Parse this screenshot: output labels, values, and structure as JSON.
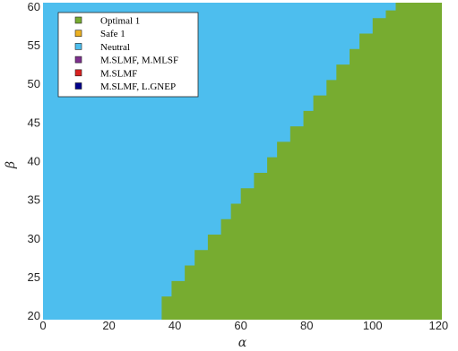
{
  "chart_data": {
    "type": "heatmap",
    "title": "",
    "xlabel": "α",
    "ylabel": "β",
    "xlim": [
      0,
      121
    ],
    "ylim": [
      19.5,
      60.5
    ],
    "xticks": [
      0,
      20,
      40,
      60,
      80,
      100,
      120
    ],
    "yticks": [
      20,
      25,
      30,
      35,
      40,
      45,
      50,
      55,
      60
    ],
    "grid": false,
    "legend_position": "top-left",
    "categories": [
      {
        "name": "Optimal 1",
        "color": "#77AC30"
      },
      {
        "name": "Safe 1",
        "color": "#EDB120"
      },
      {
        "name": "Neutral",
        "color": "#4DBEEE"
      },
      {
        "name": "M.SLMF, M.MLSF",
        "color": "#7E2F8E"
      },
      {
        "name": "M.SLMF",
        "color": "#D92120"
      },
      {
        "name": "M.SLMF, L.GNEP",
        "color": "#00008B"
      }
    ],
    "background_category": "Neutral",
    "region_category": "Optimal 1",
    "boundary": {
      "description": "For each beta row, cells with alpha >= threshold are Optimal 1, otherwise Neutral",
      "beta": [
        20,
        21,
        22,
        23,
        24,
        25,
        26,
        27,
        28,
        29,
        30,
        31,
        32,
        33,
        34,
        35,
        36,
        37,
        38,
        39,
        40,
        41,
        42,
        43,
        44,
        45,
        46,
        47,
        48,
        49,
        50,
        51,
        52,
        53,
        54,
        55,
        56,
        57,
        58,
        59,
        60
      ],
      "alpha_threshold": [
        36,
        36,
        36,
        39,
        39,
        43,
        43,
        46,
        46,
        50,
        50,
        54,
        54,
        57,
        57,
        60,
        60,
        64,
        64,
        68,
        68,
        71,
        71,
        75,
        75,
        79,
        79,
        82,
        82,
        86,
        86,
        89,
        89,
        93,
        93,
        96,
        96,
        100,
        100,
        104,
        107
      ]
    }
  }
}
